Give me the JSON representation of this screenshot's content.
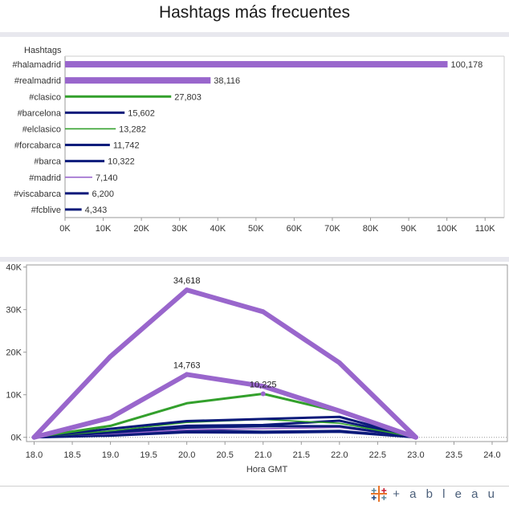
{
  "title": "Hashtags más frecuentes",
  "brand": "+ a b l e a u",
  "colors": {
    "purple": "#9966cc",
    "green": "#33a02c",
    "navy": "#0b1a7a",
    "grid": "#bbbbbb"
  },
  "chart_data": [
    {
      "type": "bar",
      "header": "Hashtags",
      "categories": [
        "#halamadrid",
        "#realmadrid",
        "#clasico",
        "#barcelona",
        "#elclasico",
        "#forcabarca",
        "#barca",
        "#madrid",
        "#viscabarca",
        "#fcblive"
      ],
      "values": [
        100178,
        38116,
        27803,
        15602,
        13282,
        11742,
        10322,
        7140,
        6200,
        4343
      ],
      "value_labels": [
        "100,178",
        "38,116",
        "27,803",
        "15,602",
        "13,282",
        "11,742",
        "10,322",
        "7,140",
        "6,200",
        "4,343"
      ],
      "colors": [
        "#9966cc",
        "#9966cc",
        "#33a02c",
        "#0b1a7a",
        "#33a02c",
        "#0b1a7a",
        "#0b1a7a",
        "#9966cc",
        "#0b1a7a",
        "#0b1a7a"
      ],
      "thickness": [
        "thick",
        "thick",
        "medium",
        "medium",
        "thin",
        "medium",
        "medium",
        "thin",
        "medium",
        "medium"
      ],
      "xlim": [
        0,
        115000
      ],
      "xticks": [
        0,
        10000,
        20000,
        30000,
        40000,
        50000,
        60000,
        70000,
        80000,
        90000,
        100000,
        110000
      ],
      "xtick_labels": [
        "0K",
        "10K",
        "20K",
        "30K",
        "40K",
        "50K",
        "60K",
        "70K",
        "80K",
        "90K",
        "100K",
        "110K"
      ]
    },
    {
      "type": "line",
      "xlabel": "Hora GMT",
      "x": [
        18,
        19,
        20,
        21,
        22,
        23
      ],
      "xlim": [
        17.9,
        24.2
      ],
      "xticks": [
        18,
        18.5,
        19,
        19.5,
        20,
        20.5,
        21,
        21.5,
        22,
        22.5,
        23,
        23.5,
        24
      ],
      "xtick_labels": [
        "18.0",
        "18.5",
        "19.0",
        "19.5",
        "20.0",
        "20.5",
        "21.0",
        "21.5",
        "22.0",
        "22.5",
        "23.0",
        "23.5",
        "24.0"
      ],
      "ylim": [
        -1000,
        40500
      ],
      "yticks": [
        0,
        10000,
        20000,
        30000,
        40000
      ],
      "ytick_labels": [
        "0K",
        "10K",
        "20K",
        "30K",
        "40K"
      ],
      "series": [
        {
          "values": [
            0,
            19000,
            34618,
            29500,
            17500,
            0
          ],
          "color": "#9966cc",
          "thickness": "thick"
        },
        {
          "values": [
            0,
            4600,
            14763,
            12000,
            6200,
            0
          ],
          "color": "#9966cc",
          "thickness": "thick"
        },
        {
          "values": [
            0,
            2700,
            8000,
            10225,
            6000,
            0
          ],
          "color": "#33a02c",
          "thickness": "medium"
        },
        {
          "values": [
            0,
            2000,
            3800,
            4300,
            4800,
            0
          ],
          "color": "#0b1a7a",
          "thickness": "medium"
        },
        {
          "values": [
            0,
            1500,
            3500,
            4200,
            3300,
            0
          ],
          "color": "#33a02c",
          "thickness": "thin"
        },
        {
          "values": [
            0,
            1300,
            2700,
            2900,
            3900,
            0
          ],
          "color": "#0b1a7a",
          "thickness": "medium"
        },
        {
          "values": [
            0,
            1100,
            2300,
            2600,
            2600,
            0
          ],
          "color": "#0b1a7a",
          "thickness": "medium"
        },
        {
          "values": [
            0,
            800,
            1800,
            2000,
            2300,
            0
          ],
          "color": "#9966cc",
          "thickness": "thin"
        },
        {
          "values": [
            0,
            600,
            1600,
            1300,
            1500,
            0
          ],
          "color": "#0b1a7a",
          "thickness": "medium"
        },
        {
          "values": [
            0,
            400,
            1200,
            1100,
            1300,
            0
          ],
          "color": "#0b1a7a",
          "thickness": "medium"
        }
      ],
      "annotations": [
        {
          "x": 20,
          "y": 34618,
          "text": "34,618"
        },
        {
          "x": 20,
          "y": 14763,
          "text": "14,763"
        },
        {
          "x": 21,
          "y": 10225,
          "text": "10,225"
        }
      ]
    }
  ]
}
